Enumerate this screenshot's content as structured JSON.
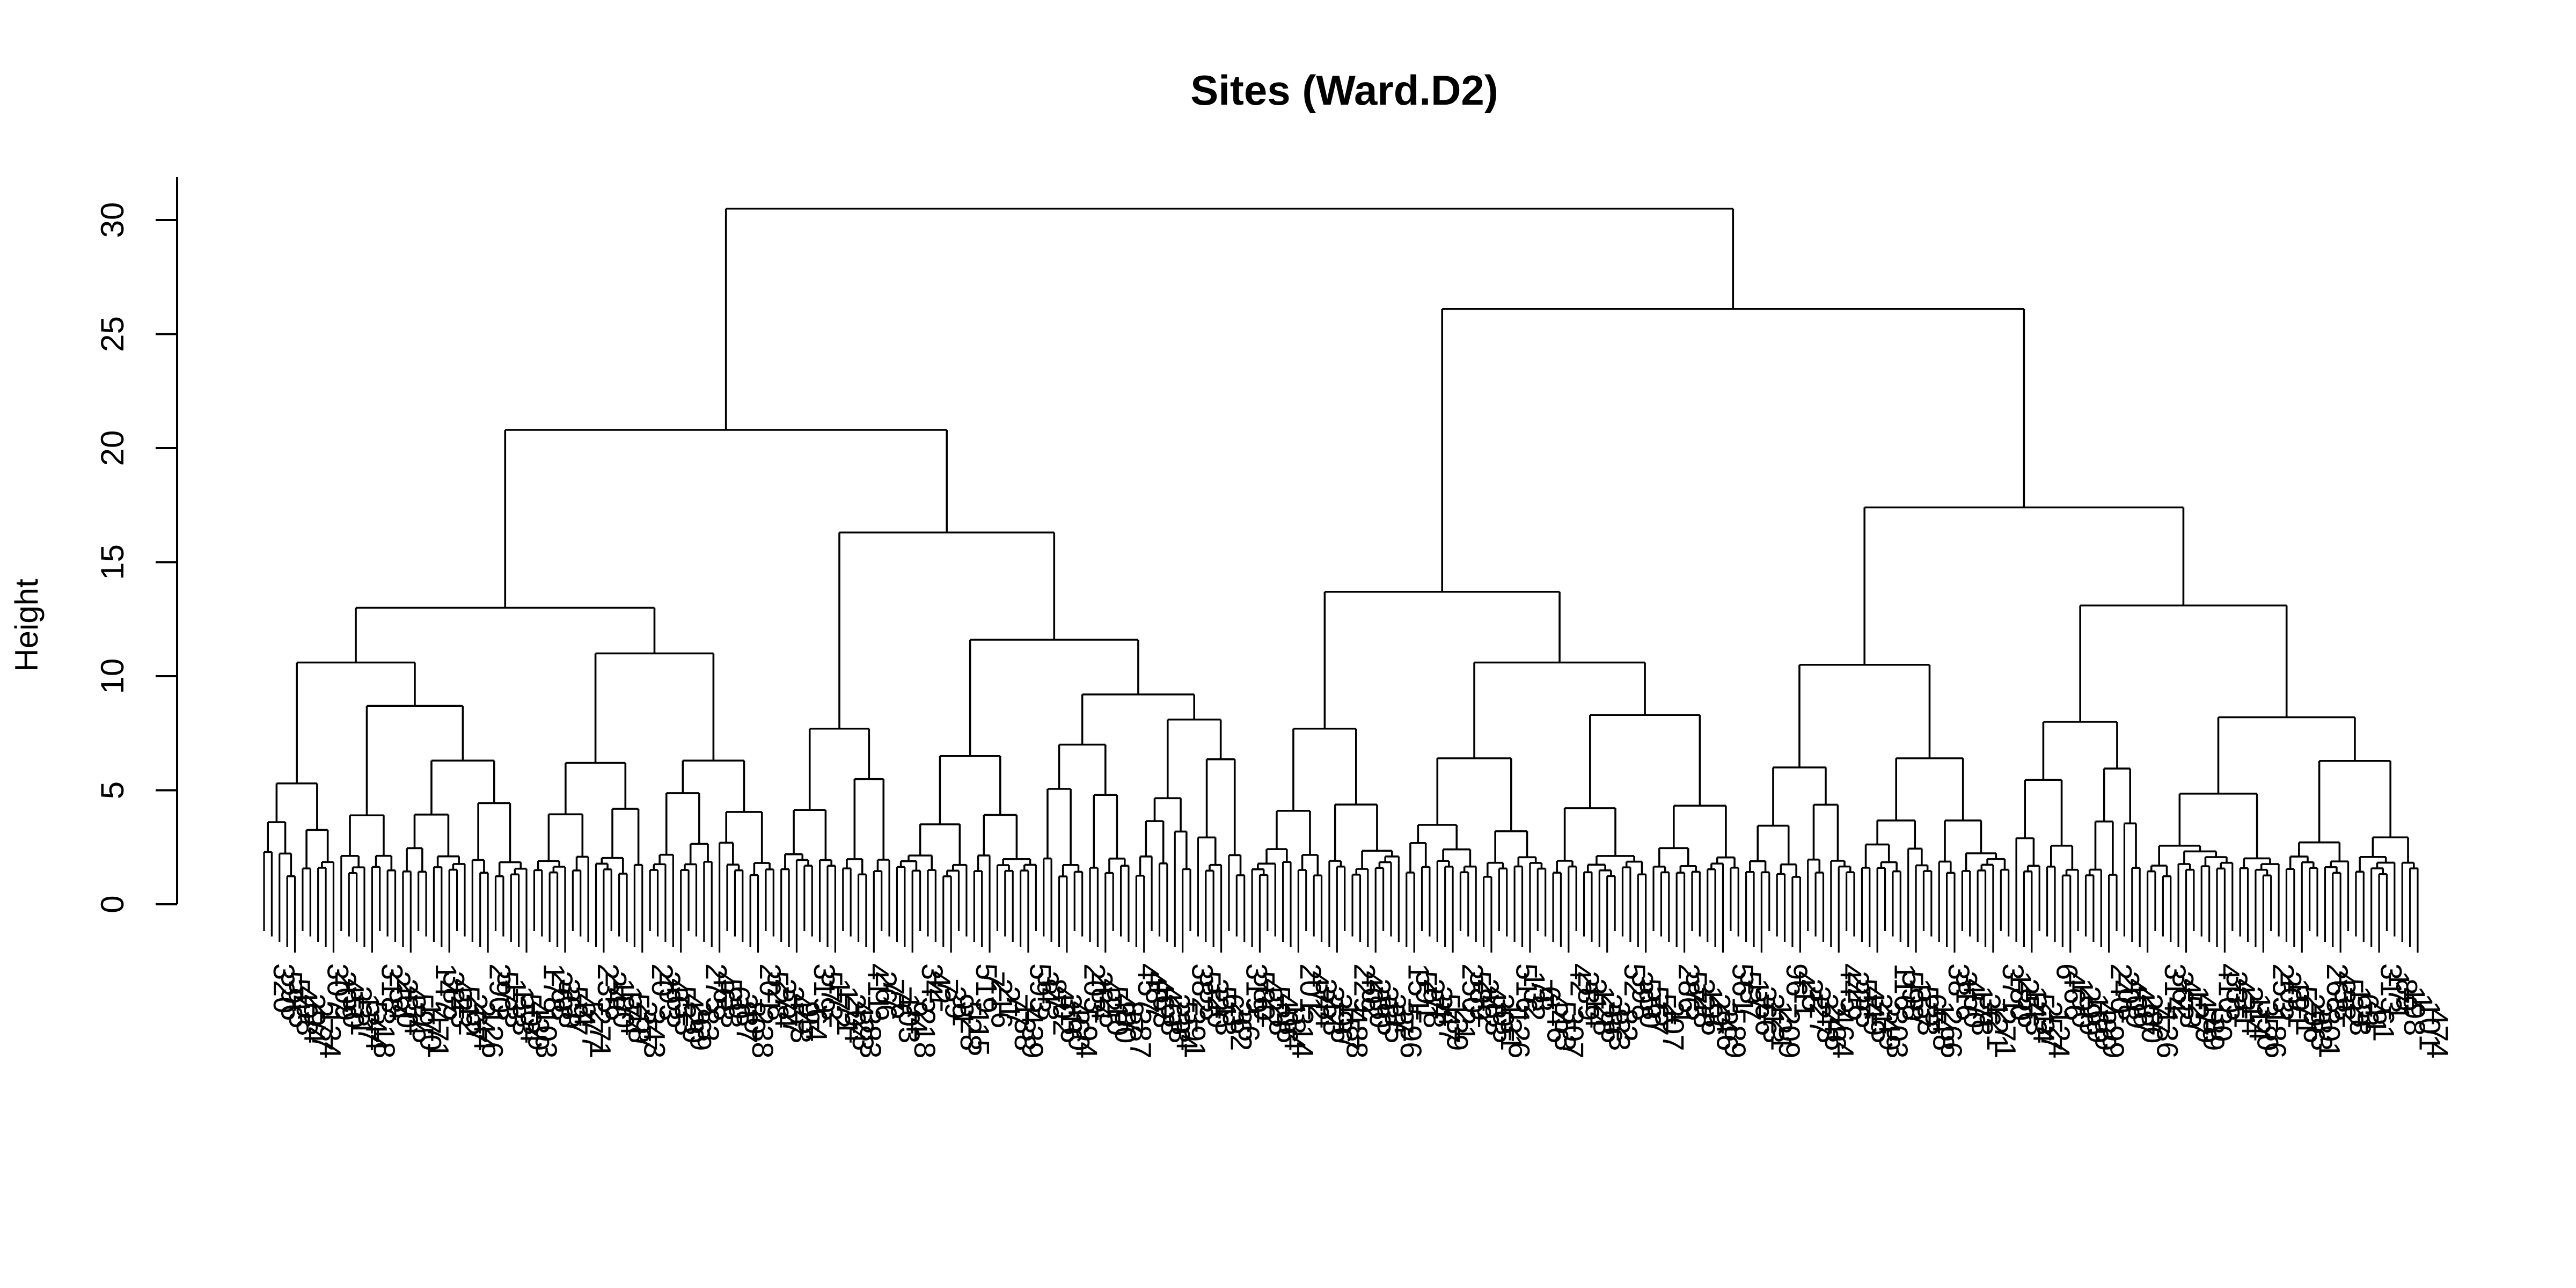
{
  "chart_data": {
    "type": "dendrogram",
    "title": "Sites (Ward.D2)",
    "ylabel": "Height",
    "xlabel": "",
    "ylim": [
      0,
      30
    ],
    "yticks": [
      0,
      5,
      10,
      15,
      20,
      25,
      30
    ],
    "n_leaves": 280,
    "leaf_labels_legible": false,
    "note": "Leaf labels are overlapping and illegible; only visible merge heights of the upper tree are recorded.",
    "merges": [
      {
        "id": "root",
        "height": 30.5,
        "children": [
          "A",
          "B"
        ]
      },
      {
        "id": "A",
        "height": 20.8,
        "children": [
          "A1",
          "A2"
        ]
      },
      {
        "id": "A1",
        "height": 13.0,
        "children": [
          "A1a",
          "A1b"
        ]
      },
      {
        "id": "A1a",
        "height": 10.6,
        "children": [
          "A1a1",
          "A1a2"
        ]
      },
      {
        "id": "A1a1",
        "height": 5.3
      },
      {
        "id": "A1a2",
        "height": 8.7,
        "children": [
          "A1a2a",
          "A1a2b"
        ]
      },
      {
        "id": "A1a2a",
        "height": 3.9
      },
      {
        "id": "A1a2b",
        "height": 6.3
      },
      {
        "id": "A1b",
        "height": 11.0,
        "children": [
          "A1b1",
          "A1b2"
        ]
      },
      {
        "id": "A1b1",
        "height": 6.2
      },
      {
        "id": "A1b2",
        "height": 6.3
      },
      {
        "id": "A2",
        "height": 16.3,
        "children": [
          "A2a",
          "A2b"
        ]
      },
      {
        "id": "A2a",
        "height": 7.7
      },
      {
        "id": "A2b",
        "height": 11.6,
        "children": [
          "A2b1",
          "A2b2"
        ]
      },
      {
        "id": "A2b1",
        "height": 6.5
      },
      {
        "id": "A2b2",
        "height": 9.2,
        "children": [
          "A2b2a",
          "A2b2b"
        ]
      },
      {
        "id": "A2b2a",
        "height": 7.0
      },
      {
        "id": "A2b2b",
        "height": 8.1
      },
      {
        "id": "B",
        "height": 26.1,
        "children": [
          "B1",
          "B2"
        ]
      },
      {
        "id": "B1",
        "height": 13.7,
        "children": [
          "B1a",
          "B1b"
        ]
      },
      {
        "id": "B1a",
        "height": 7.7
      },
      {
        "id": "B1b",
        "height": 10.6,
        "children": [
          "B1b1",
          "B1b2"
        ]
      },
      {
        "id": "B1b1",
        "height": 6.4
      },
      {
        "id": "B1b2",
        "height": 8.3
      },
      {
        "id": "B2",
        "height": 17.4,
        "children": [
          "B2a",
          "B2b"
        ]
      },
      {
        "id": "B2a",
        "height": 10.5,
        "children": [
          "B2a1",
          "B2a2"
        ]
      },
      {
        "id": "B2a1",
        "height": 6.0
      },
      {
        "id": "B2a2",
        "height": 6.4
      },
      {
        "id": "B2b",
        "height": 13.1,
        "children": [
          "B2b1",
          "B2b2"
        ]
      },
      {
        "id": "B2b1",
        "height": 8.0
      },
      {
        "id": "B2b2",
        "height": 8.2
      }
    ]
  }
}
